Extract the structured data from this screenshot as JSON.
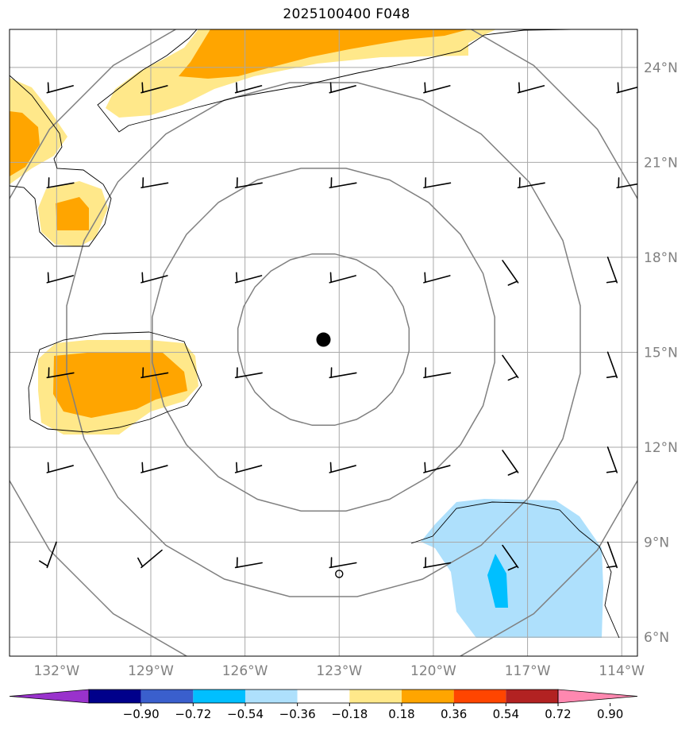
{
  "title": "2025100400 F048",
  "map": {
    "lon_range": [
      -133.5,
      -113.5
    ],
    "lat_range": [
      5.4,
      25.2
    ],
    "lon_ticks": [
      {
        "value": -132,
        "label": "132°W"
      },
      {
        "value": -129,
        "label": "129°W"
      },
      {
        "value": -126,
        "label": "126°W"
      },
      {
        "value": -123,
        "label": "123°W"
      },
      {
        "value": -120,
        "label": "120°W"
      },
      {
        "value": -117,
        "label": "117°W"
      },
      {
        "value": -114,
        "label": "114°W"
      }
    ],
    "lat_ticks": [
      {
        "value": 6,
        "label": "6°N"
      },
      {
        "value": 9,
        "label": "9°N"
      },
      {
        "value": 12,
        "label": "12°N"
      },
      {
        "value": 15,
        "label": "15°N"
      },
      {
        "value": 18,
        "label": "18°N"
      },
      {
        "value": 21,
        "label": "21°N"
      },
      {
        "value": 24,
        "label": "24°N"
      }
    ],
    "storm_center": {
      "lon": -123.5,
      "lat": 15.4
    },
    "reference_point": {
      "lon": -123.0,
      "lat": 8.0
    },
    "range_rings_deg": [
      2.75,
      5.5,
      8.25,
      11.0
    ],
    "colors": {
      "light_yellow": "#ffe88a",
      "orange": "#ffa500",
      "light_blue": "#aee0fc",
      "cyan": "#00bfff",
      "grid": "#a9a9a9",
      "ring": "#808080",
      "tick_label": "#808080"
    }
  },
  "colorbar": {
    "labels": [
      "−0.90",
      "−0.72",
      "−0.54",
      "−0.36",
      "−0.18",
      "0.18",
      "0.36",
      "0.54",
      "0.72",
      "0.90"
    ],
    "colors": [
      "#9932cc",
      "#00008b",
      "#3a5fcd",
      "#00bfff",
      "#aee0fc",
      "#ffffff",
      "#ffe88a",
      "#ffa500",
      "#ff4500",
      "#b22222",
      "#ff88b0"
    ]
  }
}
